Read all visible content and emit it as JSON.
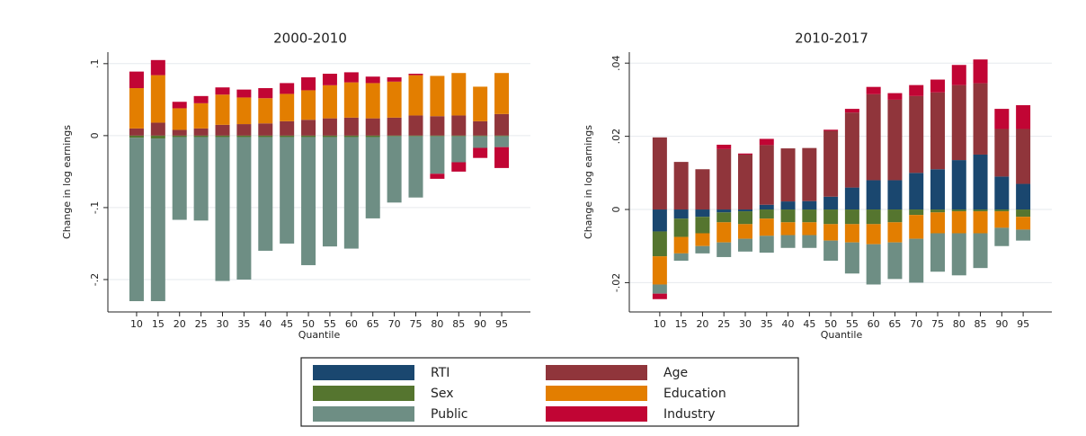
{
  "chart_data": [
    {
      "type": "bar",
      "stacked": true,
      "title": "2000-2010",
      "xlabel": "Quantile",
      "ylabel": "Change in log earnings",
      "categories": [
        "10",
        "15",
        "20",
        "25",
        "30",
        "35",
        "40",
        "45",
        "50",
        "55",
        "60",
        "65",
        "70",
        "75",
        "80",
        "85",
        "90",
        "95"
      ],
      "ylim": [
        -0.245,
        0.116
      ],
      "yticks": [
        {
          "value": 0.1,
          "label": ".1"
        },
        0,
        {
          "value": -0.1,
          "label": "-.1"
        },
        {
          "value": -0.2,
          "label": "-.2"
        }
      ],
      "grid": true,
      "series": [
        {
          "name": "RTI",
          "color": "#1a476f",
          "values": [
            0,
            0,
            0,
            0,
            0,
            0,
            0,
            0,
            0,
            0,
            0,
            0,
            0,
            0,
            0,
            0,
            0,
            0
          ]
        },
        {
          "name": "Age",
          "color": "#90353b",
          "values": [
            0.01,
            0.018,
            0.008,
            0.01,
            0.015,
            0.016,
            0.017,
            0.02,
            0.022,
            0.024,
            0.025,
            0.024,
            0.025,
            0.028,
            0.027,
            0.028,
            0.02,
            0.03
          ]
        },
        {
          "name": "Sex",
          "color": "#55752f",
          "values": [
            -0.003,
            -0.004,
            -0.002,
            -0.002,
            -0.002,
            -0.002,
            -0.002,
            -0.002,
            -0.002,
            -0.002,
            -0.002,
            -0.002,
            -0.001,
            -0.001,
            -0.001,
            -0.001,
            -0.001,
            -0.001
          ]
        },
        {
          "name": "Education",
          "color": "#e37e00",
          "values": [
            0.056,
            0.066,
            0.03,
            0.035,
            0.042,
            0.037,
            0.035,
            0.038,
            0.041,
            0.046,
            0.049,
            0.049,
            0.05,
            0.056,
            0.056,
            0.059,
            0.048,
            0.057
          ]
        },
        {
          "name": "Public",
          "color": "#6e8e84",
          "values": [
            -0.227,
            -0.226,
            -0.115,
            -0.116,
            -0.2,
            -0.198,
            -0.158,
            -0.148,
            -0.178,
            -0.152,
            -0.155,
            -0.113,
            -0.092,
            -0.085,
            -0.052,
            -0.036,
            -0.016,
            -0.015
          ]
        },
        {
          "name": "Industry",
          "color": "#c10534",
          "values": [
            0.023,
            0.021,
            0.009,
            0.01,
            0.01,
            0.011,
            0.014,
            0.015,
            0.018,
            0.016,
            0.014,
            0.009,
            0.006,
            0.002,
            -0.007,
            -0.013,
            -0.014,
            -0.029
          ]
        }
      ]
    },
    {
      "type": "bar",
      "stacked": true,
      "title": "2010-2017",
      "xlabel": "Quantile",
      "ylabel": "Change in log earnings",
      "categories": [
        "10",
        "15",
        "20",
        "25",
        "30",
        "35",
        "40",
        "45",
        "50",
        "55",
        "60",
        "65",
        "70",
        "75",
        "80",
        "85",
        "90",
        "95"
      ],
      "ylim": [
        -0.028,
        0.043
      ],
      "yticks": [
        {
          "value": 0.04,
          "label": ".04"
        },
        {
          "value": 0.02,
          "label": ".02"
        },
        0,
        {
          "value": -0.02,
          "label": "-.02"
        }
      ],
      "grid": true,
      "series": [
        {
          "name": "RTI",
          "color": "#1a476f",
          "values": [
            -0.006,
            -0.0025,
            -0.002,
            -0.0008,
            -0.0005,
            0.0013,
            0.0022,
            0.0023,
            0.0035,
            0.006,
            0.008,
            0.008,
            0.01,
            0.011,
            0.0135,
            0.015,
            0.009,
            0.007
          ]
        },
        {
          "name": "Age",
          "color": "#90353b",
          "values": [
            0.0197,
            0.013,
            0.011,
            0.0165,
            0.015,
            0.0163,
            0.0145,
            0.0145,
            0.018,
            0.0205,
            0.0235,
            0.022,
            0.021,
            0.021,
            0.0205,
            0.0195,
            0.013,
            0.015
          ]
        },
        {
          "name": "Sex",
          "color": "#55752f",
          "values": [
            -0.0068,
            -0.005,
            -0.0045,
            -0.0027,
            -0.0035,
            -0.0025,
            -0.0035,
            -0.0035,
            -0.004,
            -0.004,
            -0.004,
            -0.0035,
            -0.0015,
            -0.0008,
            -0.0005,
            -0.0005,
            -0.0005,
            -0.002
          ]
        },
        {
          "name": "Education",
          "color": "#e37e00",
          "values": [
            -0.0077,
            -0.0045,
            -0.0035,
            -0.0055,
            -0.004,
            -0.0047,
            -0.0035,
            -0.0035,
            -0.0045,
            -0.005,
            -0.0055,
            -0.0055,
            -0.0065,
            -0.0057,
            -0.006,
            -0.006,
            -0.0045,
            -0.0035
          ]
        },
        {
          "name": "Public",
          "color": "#6e8e84",
          "values": [
            -0.0025,
            -0.002,
            -0.002,
            -0.004,
            -0.0035,
            -0.0046,
            -0.0035,
            -0.0035,
            -0.0055,
            -0.0085,
            -0.011,
            -0.01,
            -0.012,
            -0.0105,
            -0.0115,
            -0.0095,
            -0.005,
            -0.003
          ]
        },
        {
          "name": "Industry",
          "color": "#c10534",
          "values": [
            -0.0015,
            0,
            0,
            0.0012,
            0.0003,
            0.0017,
            0,
            0,
            0.0003,
            0.001,
            0.002,
            0.0018,
            0.003,
            0.0035,
            0.0055,
            0.0065,
            0.0055,
            0.0065
          ]
        }
      ]
    }
  ]
}
